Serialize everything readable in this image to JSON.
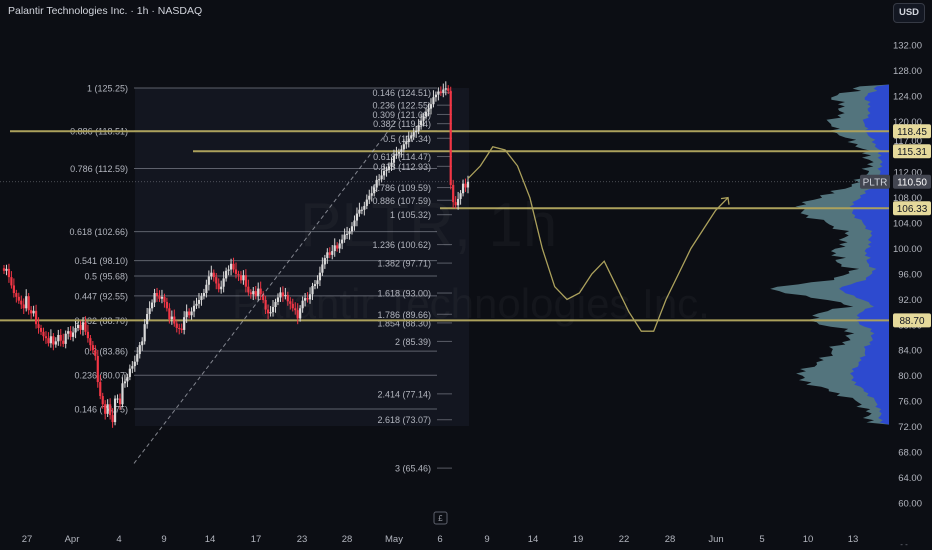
{
  "header": {
    "symbol_line": "Palantir Technologies Inc. · 1h · NASDAQ",
    "currency_button": "USD",
    "watermark_symbol": "PLTR, 1h",
    "watermark_name": "Palantir Technologies Inc."
  },
  "price_axis": {
    "ticks": [
      "132.00",
      "128.00",
      "124.00",
      "120.00",
      "117.00",
      "112.00",
      "108.00",
      "104.00",
      "100.00",
      "96.00",
      "92.00",
      "88.00",
      "84.00",
      "80.00",
      "76.00",
      "72.00",
      "68.00",
      "64.00",
      "60.00"
    ],
    "tags": [
      {
        "label": "118.45",
        "price": 118.45,
        "style": "gold"
      },
      {
        "label": "115.31",
        "price": 115.31,
        "style": "gold"
      },
      {
        "label": "PLTR",
        "price": 110.5,
        "style": "symbol"
      },
      {
        "label": "110.50",
        "price": 110.5,
        "style": "last"
      },
      {
        "label": "106.33",
        "price": 106.33,
        "style": "gold"
      },
      {
        "label": "88.70",
        "price": 88.7,
        "style": "gold"
      }
    ]
  },
  "time_axis": {
    "ticks": [
      "27",
      "Apr",
      "4",
      "9",
      "14",
      "17",
      "23",
      "28",
      "May",
      "6",
      "9",
      "14",
      "19",
      "22",
      "28",
      "Jun",
      "5",
      "10",
      "13"
    ],
    "small_label": "£",
    "end_label": "- -"
  },
  "fib_retracement": [
    {
      "label": "1 (125.25)",
      "price": 125.25
    },
    {
      "label": "0.886 (118.51)",
      "price": 118.51
    },
    {
      "label": "0.786 (112.59)",
      "price": 112.59
    },
    {
      "label": "0.618 (102.66)",
      "price": 102.66
    },
    {
      "label": "0.541 (98.10)",
      "price": 98.1
    },
    {
      "label": "0.5 (95.68)",
      "price": 95.68
    },
    {
      "label": "0.447 (92.55)",
      "price": 92.55
    },
    {
      "label": "0.382 (88.70)",
      "price": 88.7
    },
    {
      "label": "0.3 (83.86)",
      "price": 83.86
    },
    {
      "label": "0.236 (80.07)",
      "price": 80.07
    },
    {
      "label": "0.146 (74.75)",
      "price": 74.75
    }
  ],
  "fib_extension": [
    {
      "label": "0.146 (124.51)",
      "price": 124.51
    },
    {
      "label": "0.236 (122.55)",
      "price": 122.55
    },
    {
      "label": "0.309 (121.09)",
      "price": 121.09
    },
    {
      "label": "0.382 (119.64)",
      "price": 119.64
    },
    {
      "label": "0.5 (117.34)",
      "price": 117.34
    },
    {
      "label": "0.618 (114.47)",
      "price": 114.47
    },
    {
      "label": "0.618 (112.93)",
      "price": 112.93
    },
    {
      "label": "0.786 (109.59)",
      "price": 109.59
    },
    {
      "label": "0.886 (107.59)",
      "price": 107.59
    },
    {
      "label": "1 (105.32)",
      "price": 105.32
    },
    {
      "label": "1.236 (100.62)",
      "price": 100.62
    },
    {
      "label": "1.382 (97.71)",
      "price": 97.71
    },
    {
      "label": "1.618 (93.00)",
      "price": 93.0
    },
    {
      "label": "1.786 (89.66)",
      "price": 89.66
    },
    {
      "label": "1.854 (88.30)",
      "price": 88.3
    },
    {
      "label": "2 (85.39)",
      "price": 85.39
    },
    {
      "label": "2.414 (77.14)",
      "price": 77.14
    },
    {
      "label": "2.618 (73.07)",
      "price": 73.07
    },
    {
      "label": "3 (65.46)",
      "price": 65.46
    }
  ],
  "horizontal_levels": [
    118.45,
    115.31,
    106.33,
    88.7
  ],
  "chart_data": {
    "type": "candlestick",
    "symbol": "PLTR",
    "interval": "1h",
    "last_price": 110.5,
    "y_range": [
      58,
      135
    ],
    "path_closes": [
      96.5,
      96.8,
      95.5,
      94.2,
      93,
      92.4,
      91.8,
      91.2,
      90.6,
      92.5,
      90.3,
      89.8,
      90.2,
      88.1,
      87.5,
      86.9,
      86.2,
      85.9,
      85.1,
      86.2,
      84.9,
      85.4,
      86.4,
      85.5,
      85.0,
      86.6,
      87.0,
      86.1,
      86.8,
      87.5,
      88.0,
      87.2,
      88.4,
      86.9,
      85.9,
      84.8,
      84.0,
      83.1,
      79.0,
      76.8,
      75.5,
      74.0,
      75.5,
      73.8,
      72.7,
      76.4,
      76.4,
      75.5,
      78.8,
      79.1,
      79.8,
      81.1,
      81.5,
      82.2,
      83.4,
      84.8,
      85.4,
      88.1,
      89.7,
      90.6,
      91.5,
      93.0,
      92.5,
      92.1,
      92.4,
      91.6,
      90.6,
      88.9,
      89.3,
      88.2,
      87.5,
      87.4,
      87.2,
      89.2,
      90.1,
      89.5,
      90.1,
      91.0,
      91.3,
      91.9,
      92.5,
      93.0,
      94.3,
      95.6,
      96.2,
      95.5,
      94.5,
      93.6,
      94.0,
      95.3,
      96.5,
      96.7,
      97.6,
      96.7,
      96.0,
      95.8,
      95.0,
      95.8,
      94.0,
      93.1,
      92.8,
      93.3,
      92.5,
      93.7,
      92.8,
      91.9,
      90.4,
      89.8,
      90.0,
      90.8,
      91.6,
      92.3,
      93.1,
      92.5,
      92.7,
      91.7,
      91.3,
      90.6,
      90.3,
      89.0,
      90.6,
      91.8,
      92.2,
      92.0,
      92.8,
      94.1,
      94.4,
      95.0,
      96.2,
      97.5,
      98.5,
      99.4,
      99.0,
      99.6,
      100.5,
      100.0,
      100.8,
      101.4,
      102.2,
      102.3,
      102.7,
      103.5,
      104.4,
      105.5,
      106.1,
      106.1,
      106.7,
      107.7,
      108.3,
      108.7,
      109.6,
      110.8,
      110.9,
      111.5,
      112.2,
      112.4,
      112.9,
      113.5,
      114.6,
      114.9,
      115.2,
      115.6,
      116.4,
      116.8,
      117.3,
      117.8,
      118.3,
      118.5,
      119.4,
      120.1,
      120.8,
      121.5,
      122.0,
      122.7,
      123.8,
      124.2,
      124.7,
      124.5,
      125.0,
      125.2,
      124.8,
      110.0,
      107.3,
      106.8,
      107.8,
      108.7,
      110.2,
      109.6,
      110.5
    ],
    "volume_profile_note": "Visible range volume profile on right side (price 72–125)",
    "projection_path_prices": [
      111,
      113,
      116,
      115.5,
      113,
      108,
      100,
      94,
      92,
      93,
      96,
      98,
      94,
      90,
      87,
      87,
      92,
      96,
      100,
      103,
      106,
      108
    ]
  },
  "colors": {
    "background": "#0c0e14",
    "up": "#dadada",
    "down": "#f23645",
    "fib_line": "#787b86",
    "gold": "#aca15c",
    "volume_light": "#8ec9d4",
    "volume_dark": "#2946d8",
    "last_tag": "#434651"
  },
  "icons": [
    "currency-icon"
  ]
}
